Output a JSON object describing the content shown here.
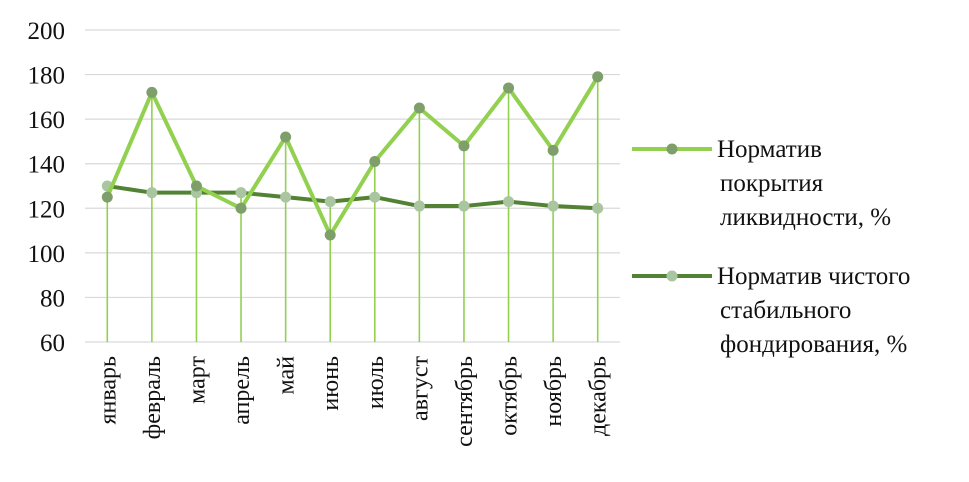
{
  "chart_data": {
    "type": "line",
    "title": "",
    "xlabel": "",
    "ylabel": "",
    "categories": [
      "январь",
      "февраль",
      "март",
      "апрель",
      "май",
      "июнь",
      "июль",
      "август",
      "сентябрь",
      "октябрь",
      "ноябрь",
      "декабрь"
    ],
    "ylim": [
      60,
      200
    ],
    "yticks": [
      60,
      80,
      100,
      120,
      140,
      160,
      180,
      200
    ],
    "grid": true,
    "drop_lines": true,
    "legend_position": "right",
    "series": [
      {
        "name_lines": [
          "Норматив",
          "покрытия",
          "ликвидности, %"
        ],
        "color": "#92d050",
        "marker_color": "#7f9f6a",
        "values": [
          125,
          172,
          130,
          120,
          152,
          108,
          141,
          165,
          148,
          174,
          146,
          179
        ]
      },
      {
        "name_lines": [
          "Норматив чистого",
          "стабильного",
          "фондирования, %"
        ],
        "color": "#548235",
        "marker_color": "#a9c6a0",
        "values": [
          130,
          127,
          127,
          127,
          125,
          123,
          125,
          121,
          121,
          123,
          121,
          120
        ]
      }
    ]
  }
}
